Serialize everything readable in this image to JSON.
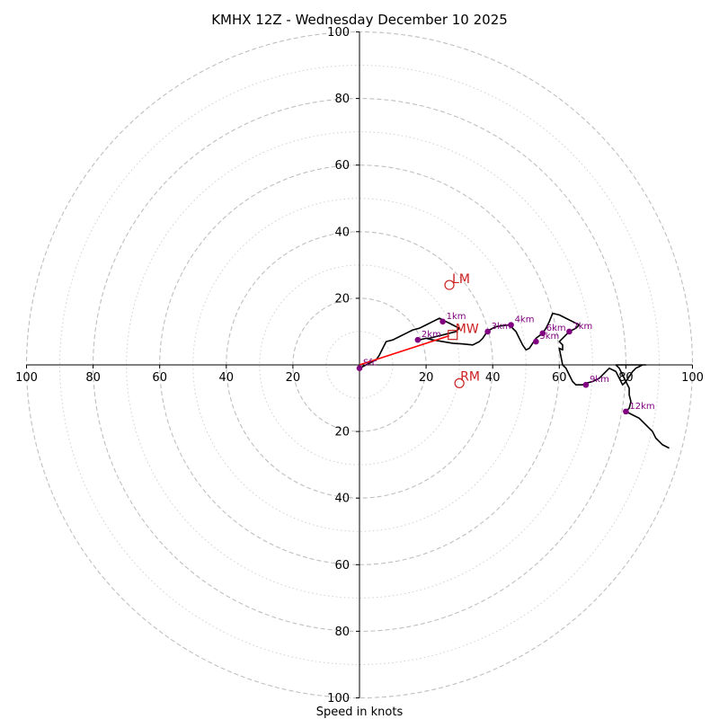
{
  "chart_data": {
    "type": "hodograph",
    "title": "KMHX 12Z - Wednesday December 10 2025",
    "xlabel": "Speed in knots",
    "units": "knots",
    "xlim": [
      -100,
      100
    ],
    "ylim": [
      -100,
      100
    ],
    "x_ticks": [
      {
        "value": -100,
        "label": "100"
      },
      {
        "value": -80,
        "label": "80"
      },
      {
        "value": -60,
        "label": "60"
      },
      {
        "value": -40,
        "label": "40"
      },
      {
        "value": -20,
        "label": "20"
      },
      {
        "value": 20,
        "label": "20"
      },
      {
        "value": 40,
        "label": "40"
      },
      {
        "value": 60,
        "label": "60"
      },
      {
        "value": 80,
        "label": "80"
      },
      {
        "value": 100,
        "label": "100"
      }
    ],
    "y_ticks": [
      {
        "value": 100,
        "label": "100"
      },
      {
        "value": 80,
        "label": "80"
      },
      {
        "value": 60,
        "label": "60"
      },
      {
        "value": 40,
        "label": "40"
      },
      {
        "value": 20,
        "label": "20"
      },
      {
        "value": -20,
        "label": "20"
      },
      {
        "value": -40,
        "label": "40"
      },
      {
        "value": -60,
        "label": "60"
      },
      {
        "value": -80,
        "label": "80"
      },
      {
        "value": -100,
        "label": "100"
      }
    ],
    "rings_dashed": [
      20,
      40,
      60,
      80,
      100
    ],
    "rings_dotted": [
      10,
      30,
      50,
      70,
      90
    ],
    "hodograph_trace": [
      [
        0,
        -1
      ],
      [
        1,
        -0.5
      ],
      [
        3,
        0.5
      ],
      [
        5,
        1.5
      ],
      [
        6,
        3
      ],
      [
        7,
        5
      ],
      [
        8,
        7
      ],
      [
        10,
        7.5
      ],
      [
        12,
        8.5
      ],
      [
        14,
        9.5
      ],
      [
        16,
        10.5
      ],
      [
        18,
        11
      ],
      [
        20,
        12
      ],
      [
        22,
        13
      ],
      [
        24,
        14
      ],
      [
        26,
        13
      ],
      [
        28,
        12
      ],
      [
        29,
        11.5
      ],
      [
        30,
        11
      ],
      [
        29,
        10
      ],
      [
        27,
        9.5
      ],
      [
        25,
        9
      ],
      [
        23,
        8.5
      ],
      [
        21,
        8
      ],
      [
        20,
        8
      ],
      [
        18,
        7.5
      ],
      [
        20,
        8
      ],
      [
        22,
        7.5
      ],
      [
        25,
        7
      ],
      [
        28,
        6.5
      ],
      [
        31,
        6.3
      ],
      [
        34,
        6
      ],
      [
        36,
        7
      ],
      [
        37,
        8
      ],
      [
        38,
        9.5
      ],
      [
        39,
        10.5
      ],
      [
        41,
        11.5
      ],
      [
        43,
        11.8
      ],
      [
        45,
        12
      ],
      [
        47,
        10
      ],
      [
        48,
        8
      ],
      [
        49,
        6
      ],
      [
        50,
        4.5
      ],
      [
        51,
        5
      ],
      [
        52,
        6.5
      ],
      [
        53,
        8
      ],
      [
        55,
        9.5
      ],
      [
        56,
        11
      ],
      [
        57,
        13
      ],
      [
        58,
        15.5
      ],
      [
        60,
        15
      ],
      [
        62,
        14
      ],
      [
        64,
        13
      ],
      [
        66,
        12
      ],
      [
        65,
        11
      ],
      [
        63,
        10
      ],
      [
        62,
        9
      ],
      [
        61,
        8
      ],
      [
        60,
        7
      ],
      [
        61,
        6
      ],
      [
        61,
        4.5
      ],
      [
        60,
        5
      ],
      [
        61,
        0
      ],
      [
        62,
        -1
      ],
      [
        63,
        -3
      ],
      [
        64,
        -5
      ],
      [
        65,
        -6
      ],
      [
        67,
        -6
      ],
      [
        68,
        -5.5
      ],
      [
        70,
        -5
      ],
      [
        72,
        -4
      ],
      [
        74,
        -2
      ],
      [
        75,
        -1
      ],
      [
        77,
        -2
      ],
      [
        78,
        -4
      ],
      [
        79,
        -6
      ],
      [
        80,
        -5
      ],
      [
        81,
        -3.5
      ],
      [
        82,
        -2
      ],
      [
        83,
        -1
      ],
      [
        84,
        -0.5
      ],
      [
        85,
        0
      ],
      [
        86,
        0
      ],
      [
        85,
        0
      ],
      [
        80,
        0
      ],
      [
        78,
        0
      ],
      [
        77,
        0
      ],
      [
        78,
        -1
      ],
      [
        79,
        -3
      ],
      [
        80,
        -5
      ],
      [
        81,
        -7
      ],
      [
        81,
        -9
      ],
      [
        81.5,
        -11
      ],
      [
        81,
        -13
      ],
      [
        80,
        -14
      ],
      [
        82,
        -15
      ],
      [
        84,
        -16
      ],
      [
        86,
        -18
      ],
      [
        88,
        -20
      ],
      [
        89,
        -22
      ],
      [
        91,
        -24
      ],
      [
        93,
        -25
      ]
    ],
    "height_markers": [
      {
        "label": "Sfc",
        "u": 0,
        "v": -1
      },
      {
        "label": "1km",
        "u": 25,
        "v": 13
      },
      {
        "label": "2km",
        "u": 17.5,
        "v": 7.5
      },
      {
        "label": "3km",
        "u": 38.5,
        "v": 10
      },
      {
        "label": "4km",
        "u": 45.5,
        "v": 12
      },
      {
        "label": "5km",
        "u": 53,
        "v": 7
      },
      {
        "label": "6km",
        "u": 55,
        "v": 9.5
      },
      {
        "label": "7km",
        "u": 63,
        "v": 10
      },
      {
        "label": "9km",
        "u": 68,
        "v": -6
      },
      {
        "label": "12km",
        "u": 80,
        "v": -14
      }
    ],
    "storm_motion": {
      "mean_wind": {
        "label": "MW",
        "u": 28,
        "v": 9
      },
      "left_mover": {
        "label": "LM",
        "u": 27,
        "v": 24
      },
      "right_mover": {
        "label": "RM",
        "u": 30,
        "v": -5.5
      }
    },
    "colors": {
      "trace": "#000000",
      "markers": "#800080",
      "motion": "#cc1f1f",
      "vector": "#ff0000",
      "ring": "#bfbfbf",
      "axis": "#000000"
    }
  }
}
